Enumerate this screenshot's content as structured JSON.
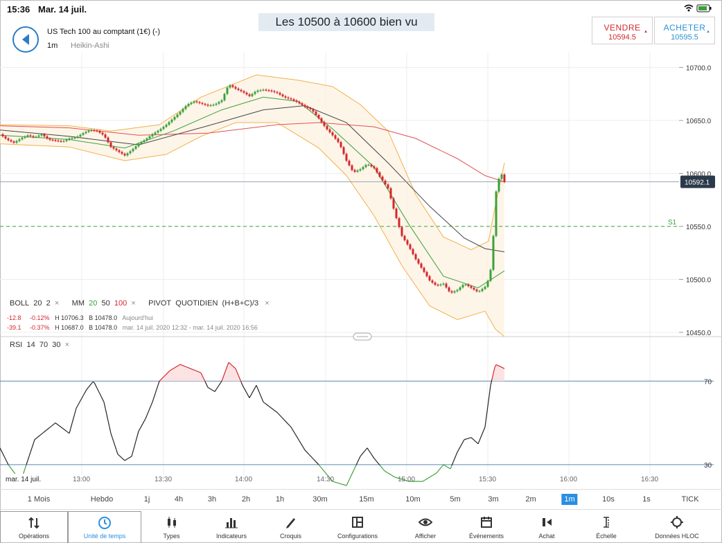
{
  "status": {
    "time": "15:36",
    "date": "Mar. 14 juil."
  },
  "caption": "Les 10500 à 10600 bien vu",
  "header": {
    "instrument": "US Tech 100 au comptant (1€) (-)",
    "timeframe": "1m",
    "chart_type": "Heikin-Ashi"
  },
  "trade": {
    "sell_label": "VENDRE",
    "sell_price": "10594.5",
    "buy_label": "ACHETER",
    "buy_price": "10595.5"
  },
  "indicators": {
    "boll": "BOLL",
    "boll_p1": "20",
    "boll_p2": "2",
    "mm": "MM",
    "mm_20": "20",
    "mm_50": "50",
    "mm_100": "100",
    "pivot": "PIVOT",
    "pivot_mode": "QUOTIDIEN",
    "pivot_formula": "(H+B+C)/3",
    "row1": {
      "chg": "-12.8",
      "pct": "-0.12%",
      "high": "H 10706.3",
      "low": "B 10478.0",
      "period": "Aujourd'hui"
    },
    "row2": {
      "chg": "-39.1",
      "pct": "-0.37%",
      "high": "H 10687.0",
      "low": "B 10478.0",
      "period": "mar. 14 juil. 2020 12:32 - mar. 14 juil. 2020 16:56"
    },
    "rsi": "RSI",
    "rsi_p1": "14",
    "rsi_p2": "70",
    "rsi_p3": "30",
    "close": "×"
  },
  "chart_data": {
    "type": "line",
    "price_axis": {
      "ticks": [
        10700.0,
        10650.0,
        10600.0,
        10550.0,
        10500.0,
        10450.0
      ],
      "tick_labels": [
        "10700.0",
        "10650.0",
        "10600.0",
        "10550.0",
        "10500.0",
        "10450.0"
      ],
      "ylim": [
        10446,
        10714
      ]
    },
    "current_price": "10592.1",
    "pivot_label": "S1",
    "s1_level": 10550,
    "time_axis": {
      "labels": [
        "mar. 14 juil.",
        "13:00",
        "13:30",
        "14:00",
        "14:30",
        "15:00",
        "15:30",
        "16:00",
        "16:30"
      ]
    },
    "rsi_axis": {
      "ticks": [
        70,
        30
      ],
      "tick_labels": [
        "70",
        "30"
      ],
      "ylim": [
        25,
        88
      ]
    },
    "price": [
      [
        0,
        10637
      ],
      [
        10,
        10632
      ],
      [
        20,
        10629
      ],
      [
        30,
        10633
      ],
      [
        40,
        10636
      ],
      [
        50,
        10634
      ],
      [
        60,
        10637
      ],
      [
        70,
        10632
      ],
      [
        80,
        10631
      ],
      [
        90,
        10630
      ],
      [
        100,
        10633
      ],
      [
        110,
        10634
      ],
      [
        120,
        10638
      ],
      [
        130,
        10641
      ],
      [
        140,
        10640
      ],
      [
        150,
        10636
      ],
      [
        160,
        10625
      ],
      [
        170,
        10621
      ],
      [
        180,
        10617
      ],
      [
        190,
        10622
      ],
      [
        200,
        10628
      ],
      [
        210,
        10632
      ],
      [
        220,
        10637
      ],
      [
        230,
        10641
      ],
      [
        240,
        10646
      ],
      [
        250,
        10652
      ],
      [
        260,
        10658
      ],
      [
        270,
        10665
      ],
      [
        280,
        10668
      ],
      [
        290,
        10666
      ],
      [
        300,
        10664
      ],
      [
        310,
        10665
      ],
      [
        320,
        10669
      ],
      [
        330,
        10684
      ],
      [
        340,
        10680
      ],
      [
        350,
        10677
      ],
      [
        360,
        10673
      ],
      [
        370,
        10678
      ],
      [
        380,
        10679
      ],
      [
        390,
        10678
      ],
      [
        400,
        10676
      ],
      [
        410,
        10672
      ],
      [
        420,
        10670
      ],
      [
        430,
        10667
      ],
      [
        440,
        10663
      ],
      [
        450,
        10660
      ],
      [
        460,
        10652
      ],
      [
        470,
        10643
      ],
      [
        480,
        10636
      ],
      [
        490,
        10628
      ],
      [
        500,
        10612
      ],
      [
        510,
        10601
      ],
      [
        520,
        10604
      ],
      [
        530,
        10609
      ],
      [
        540,
        10605
      ],
      [
        550,
        10595
      ],
      [
        560,
        10586
      ],
      [
        570,
        10562
      ],
      [
        580,
        10541
      ],
      [
        590,
        10531
      ],
      [
        600,
        10519
      ],
      [
        610,
        10509
      ],
      [
        620,
        10499
      ],
      [
        630,
        10494
      ],
      [
        640,
        10496
      ],
      [
        650,
        10487
      ],
      [
        660,
        10490
      ],
      [
        670,
        10496
      ],
      [
        680,
        10492
      ],
      [
        690,
        10488
      ],
      [
        700,
        10493
      ],
      [
        705,
        10500
      ],
      [
        710,
        10515
      ],
      [
        715,
        10580
      ],
      [
        720,
        10595
      ],
      [
        725,
        10600
      ],
      [
        728,
        10592
      ]
    ],
    "ma20": [
      [
        0,
        10636
      ],
      [
        100,
        10632
      ],
      [
        180,
        10624
      ],
      [
        250,
        10640
      ],
      [
        320,
        10660
      ],
      [
        380,
        10672
      ],
      [
        430,
        10668
      ],
      [
        480,
        10642
      ],
      [
        540,
        10606
      ],
      [
        590,
        10552
      ],
      [
        640,
        10503
      ],
      [
        690,
        10492
      ],
      [
        728,
        10508
      ]
    ],
    "ma50": [
      [
        0,
        10641
      ],
      [
        100,
        10635
      ],
      [
        200,
        10627
      ],
      [
        300,
        10645
      ],
      [
        380,
        10660
      ],
      [
        440,
        10664
      ],
      [
        500,
        10648
      ],
      [
        560,
        10610
      ],
      [
        620,
        10569
      ],
      [
        670,
        10539
      ],
      [
        700,
        10529
      ],
      [
        728,
        10526
      ]
    ],
    "ma100": [
      [
        0,
        10645
      ],
      [
        100,
        10643
      ],
      [
        200,
        10636
      ],
      [
        300,
        10638
      ],
      [
        400,
        10646
      ],
      [
        460,
        10648
      ],
      [
        540,
        10644
      ],
      [
        600,
        10633
      ],
      [
        660,
        10614
      ],
      [
        700,
        10598
      ],
      [
        728,
        10592
      ]
    ],
    "boll_upper": [
      [
        0,
        10646
      ],
      [
        100,
        10645
      ],
      [
        160,
        10640
      ],
      [
        230,
        10646
      ],
      [
        290,
        10672
      ],
      [
        370,
        10693
      ],
      [
        430,
        10688
      ],
      [
        480,
        10682
      ],
      [
        520,
        10665
      ],
      [
        560,
        10640
      ],
      [
        600,
        10580
      ],
      [
        640,
        10540
      ],
      [
        680,
        10528
      ],
      [
        705,
        10536
      ],
      [
        715,
        10570
      ],
      [
        728,
        10610
      ]
    ],
    "boll_lower": [
      [
        0,
        10628
      ],
      [
        100,
        10625
      ],
      [
        180,
        10612
      ],
      [
        240,
        10618
      ],
      [
        290,
        10635
      ],
      [
        340,
        10648
      ],
      [
        400,
        10648
      ],
      [
        460,
        10624
      ],
      [
        500,
        10598
      ],
      [
        540,
        10560
      ],
      [
        580,
        10513
      ],
      [
        620,
        10475
      ],
      [
        660,
        10462
      ],
      [
        700,
        10470
      ],
      [
        715,
        10453
      ],
      [
        728,
        10446
      ]
    ],
    "rsi": [
      [
        0,
        38
      ],
      [
        12,
        30
      ],
      [
        30,
        22
      ],
      [
        50,
        42
      ],
      [
        80,
        50
      ],
      [
        100,
        45
      ],
      [
        110,
        57
      ],
      [
        125,
        66
      ],
      [
        135,
        70
      ],
      [
        150,
        60
      ],
      [
        160,
        45
      ],
      [
        170,
        35
      ],
      [
        180,
        32
      ],
      [
        190,
        34
      ],
      [
        200,
        46
      ],
      [
        210,
        52
      ],
      [
        220,
        60
      ],
      [
        230,
        70
      ],
      [
        245,
        75
      ],
      [
        260,
        78
      ],
      [
        275,
        76
      ],
      [
        290,
        74
      ],
      [
        300,
        67
      ],
      [
        310,
        65
      ],
      [
        320,
        70
      ],
      [
        330,
        79
      ],
      [
        340,
        76
      ],
      [
        350,
        68
      ],
      [
        360,
        62
      ],
      [
        370,
        68
      ],
      [
        380,
        60
      ],
      [
        400,
        55
      ],
      [
        420,
        48
      ],
      [
        440,
        37
      ],
      [
        460,
        30
      ],
      [
        480,
        22
      ],
      [
        500,
        20
      ],
      [
        520,
        34
      ],
      [
        530,
        38
      ],
      [
        540,
        33
      ],
      [
        555,
        27
      ],
      [
        570,
        24
      ],
      [
        590,
        22
      ],
      [
        610,
        22
      ],
      [
        630,
        26
      ],
      [
        640,
        30
      ],
      [
        650,
        28
      ],
      [
        660,
        36
      ],
      [
        670,
        42
      ],
      [
        680,
        43
      ],
      [
        690,
        40
      ],
      [
        700,
        48
      ],
      [
        708,
        68
      ],
      [
        715,
        78
      ],
      [
        722,
        77
      ],
      [
        728,
        76
      ]
    ],
    "x_range": [
      0,
      1042
    ],
    "rsi_red_threshold": 70,
    "grid": true
  },
  "timeframes": [
    "1 Mois",
    "Hebdo",
    "1j",
    "4h",
    "3h",
    "2h",
    "1h",
    "30m",
    "15m",
    "10m",
    "5m",
    "3m",
    "2m",
    "1m",
    "10s",
    "1s",
    "TICK"
  ],
  "selected_timeframe": "1m",
  "toolbar": [
    {
      "label": "Opérations",
      "icon": "operations-icon"
    },
    {
      "label": "Unité de temps",
      "icon": "clock-icon"
    },
    {
      "label": "Types",
      "icon": "candles-icon"
    },
    {
      "label": "Indicateurs",
      "icon": "bars-icon"
    },
    {
      "label": "Croquis",
      "icon": "pencil-icon"
    },
    {
      "label": "Configurations",
      "icon": "layout-icon"
    },
    {
      "label": "Afficher",
      "icon": "eye-icon"
    },
    {
      "label": "Événements",
      "icon": "calendar-icon"
    },
    {
      "label": "Achat",
      "icon": "buy-icon"
    },
    {
      "label": "Échelle",
      "icon": "scale-icon"
    },
    {
      "label": "Données HLOC",
      "icon": "crosshair-icon"
    }
  ],
  "colors": {
    "accent": "#2a8ee2",
    "up": "#3aa13a",
    "down": "#d4272c",
    "boll": "#f2b04a",
    "ma100": "#e05050",
    "ma50": "#444444"
  }
}
